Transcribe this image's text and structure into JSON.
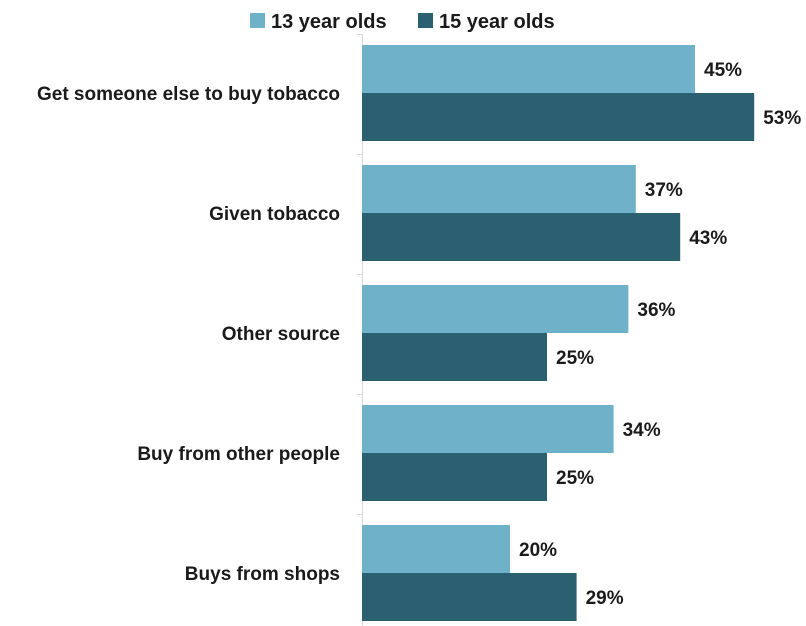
{
  "chart_data": {
    "type": "bar",
    "orientation": "horizontal",
    "title": "",
    "xlabel": "",
    "ylabel": "",
    "legend_position": "top",
    "grid": false,
    "value_suffix": "%",
    "categories": [
      "Get someone else to buy tobacco",
      "Given tobacco",
      "Other source",
      "Buy from other people",
      "Buys from shops"
    ],
    "series": [
      {
        "name": "13 year olds",
        "color": "#6fb1c8",
        "values": [
          45,
          37,
          36,
          34,
          20
        ]
      },
      {
        "name": "15 year olds",
        "color": "#2a6070",
        "values": [
          53,
          43,
          25,
          25,
          29
        ]
      }
    ]
  }
}
